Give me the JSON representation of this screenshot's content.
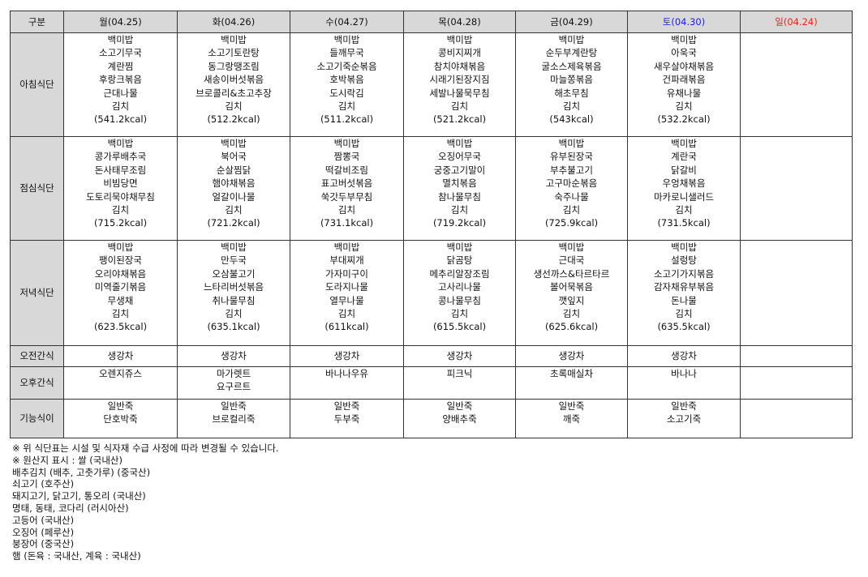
{
  "header": {
    "label": "구분",
    "days": [
      {
        "label": "월(04.25)",
        "color": "#111111"
      },
      {
        "label": "화(04.26)",
        "color": "#111111"
      },
      {
        "label": "수(04.27)",
        "color": "#111111"
      },
      {
        "label": "목(04.28)",
        "color": "#111111"
      },
      {
        "label": "금(04.29)",
        "color": "#111111"
      },
      {
        "label": "토(04.30)",
        "color": "#1a1aff"
      },
      {
        "label": "일(04.24)",
        "color": "#ff1a1a"
      }
    ]
  },
  "rows": [
    {
      "label": "아침식단",
      "cells": [
        [
          "백미밥",
          "소고기무국",
          "계란찜",
          "후랑크볶음",
          "근대나물",
          "김치",
          "(541.2kcal)"
        ],
        [
          "백미밥",
          "소고기토란탕",
          "동그랑땡조림",
          "새송이버섯볶음",
          "브로콜리&초고추장",
          "김치",
          "(512.2kcal)"
        ],
        [
          "백미밥",
          "들깨무국",
          "소고기죽순볶음",
          "호박볶음",
          "도시락김",
          "김치",
          "(511.2kcal)"
        ],
        [
          "백미밥",
          "콩비지찌개",
          "참치야채볶음",
          "시래기된장지짐",
          "세발나물묵무침",
          "김치",
          "(521.2kcal)"
        ],
        [
          "백미밥",
          "순두부계란탕",
          "굴소스제육볶음",
          "마늘쫑볶음",
          "해초무침",
          "김치",
          "(543kcal)"
        ],
        [
          "백미밥",
          "아욱국",
          "새우살야채볶음",
          "건파래볶음",
          "유채나물",
          "김치",
          "(532.2kcal)"
        ],
        []
      ]
    },
    {
      "label": "점심식단",
      "cells": [
        [
          "백미밥",
          "콩가루배추국",
          "돈사태무조림",
          "비빔당면",
          "도토리묵야채무침",
          "김치",
          "(715.2kcal)"
        ],
        [
          "백미밥",
          "북어국",
          "순살찜닭",
          "햄야채볶음",
          "얼갈이나물",
          "김치",
          "(721.2kcal)"
        ],
        [
          "백미밥",
          "짬뽕국",
          "떡갈비조림",
          "표고버섯볶음",
          "쑥갓두부무침",
          "김치",
          "(731.1kcal)"
        ],
        [
          "백미밥",
          "오징어무국",
          "궁중고기말이",
          "멸치볶음",
          "참나물무침",
          "김치",
          "(719.2kcal)"
        ],
        [
          "백미밥",
          "유부된장국",
          "부추불고기",
          "고구마순볶음",
          "숙주나물",
          "김치",
          "(725.9kcal)"
        ],
        [
          "백미밥",
          "계란국",
          "닭갈비",
          "우엉채볶음",
          "마카로니샐러드",
          "김치",
          "(731.5kcal)"
        ],
        []
      ]
    },
    {
      "label": "저녁식단",
      "cells": [
        [
          "백미밥",
          "팽이된장국",
          "오리야채볶음",
          "미역줄기볶음",
          "무생채",
          "김치",
          "(623.5kcal)"
        ],
        [
          "백미밥",
          "만두국",
          "오삼불고기",
          "느타리버섯볶음",
          "취나물무침",
          "김치",
          "(635.1kcal)"
        ],
        [
          "백미밥",
          "부대찌개",
          "가자미구이",
          "도라지나물",
          "열무나물",
          "김치",
          "(611kcal)"
        ],
        [
          "백미밥",
          "닭곰탕",
          "메추리알장조림",
          "고사리나물",
          "콩나물무침",
          "김치",
          "(615.5kcal)"
        ],
        [
          "백미밥",
          "근대국",
          "생선까스&타르타르",
          "볼어묵볶음",
          "깻잎지",
          "김치",
          "(625.6kcal)"
        ],
        [
          "백미밥",
          "설렁탕",
          "소고기가지볶음",
          "감자채유부볶음",
          "돈나물",
          "김치",
          "(635.5kcal)"
        ],
        []
      ]
    },
    {
      "label": "오전간식",
      "cells": [
        [
          "생강차"
        ],
        [
          "생강차"
        ],
        [
          "생강차"
        ],
        [
          "생강차"
        ],
        [
          "생강차"
        ],
        [
          "생강차"
        ],
        []
      ]
    },
    {
      "label": "오후간식",
      "cells": [
        [
          "오렌지쥬스"
        ],
        [
          "마가렛트",
          "요구르트"
        ],
        [
          "바나나우유"
        ],
        [
          "피크닉"
        ],
        [
          "초록매실차"
        ],
        [
          "바나나"
        ],
        []
      ]
    },
    {
      "label": "기능식이",
      "cells": [
        [
          "일반죽",
          "단호박죽"
        ],
        [
          "일반죽",
          "브로컬리죽"
        ],
        [
          "일반죽",
          "두부죽"
        ],
        [
          "일반죽",
          "양배추죽"
        ],
        [
          "일반죽",
          "깨죽"
        ],
        [
          "일반죽",
          "소고기죽"
        ],
        []
      ]
    }
  ],
  "notes": [
    "※ 위 식단표는 시설 및 식자재 수급 사정에 따라 변경될 수 있습니다.",
    "※ 원산지 표시 : 쌀 (국내산)",
    "배추김치 (배추, 고춧가루) (중국산)",
    "쇠고기 (호주산)",
    "돼지고기, 닭고기, 통오리 (국내산)",
    "명태, 동태, 코다리 (러시아산)",
    "고등어 (국내산)",
    "오징어 (페루산)",
    "붕장어 (중국산)",
    "햄 (돈육 : 국내산, 계육 : 국내산)"
  ]
}
